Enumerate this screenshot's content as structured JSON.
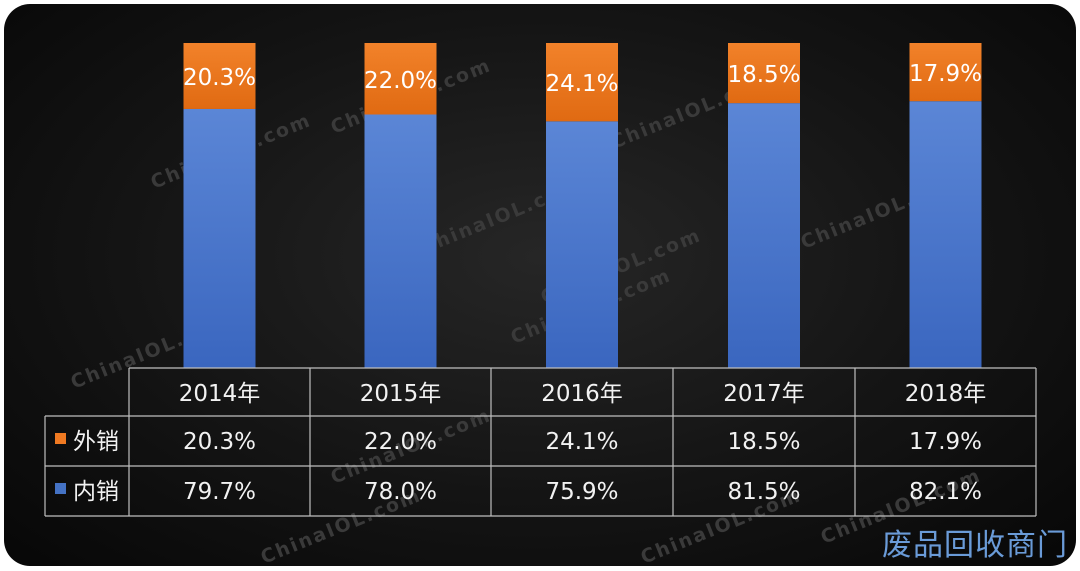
{
  "chart_data": {
    "type": "bar",
    "stacked": true,
    "categories": [
      "2014年",
      "2015年",
      "2016年",
      "2017年",
      "2018年"
    ],
    "series": [
      {
        "name": "外销",
        "color": "#f07a22",
        "values": [
          20.3,
          22.0,
          24.1,
          18.5,
          17.9
        ],
        "labels": [
          "20.3%",
          "22.0%",
          "24.1%",
          "18.5%",
          "17.9%"
        ]
      },
      {
        "name": "内销",
        "color": "#4472c4",
        "values": [
          79.7,
          78.0,
          75.9,
          81.5,
          82.1
        ],
        "labels": [
          "79.7%",
          "78.0%",
          "75.9%",
          "81.5%",
          "82.1%"
        ]
      }
    ],
    "ylim": [
      0,
      100
    ],
    "data_table": true,
    "grid": false,
    "legend": "data-table-left"
  },
  "watermark": "ChinaIOL.com",
  "footer_logo": "废品回收商门"
}
